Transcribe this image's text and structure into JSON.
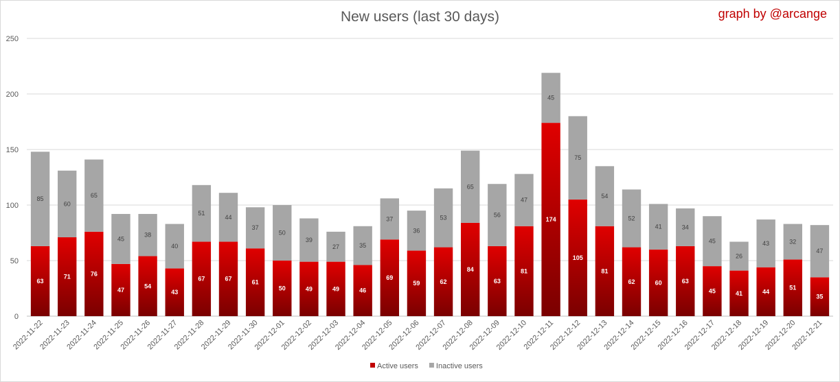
{
  "chart_data": {
    "type": "bar",
    "stacked": true,
    "title": "New users (last 30 days)",
    "credit": "graph by @arcange",
    "categories": [
      "2022-11-22",
      "2022-11-23",
      "2022-11-24",
      "2022-11-25",
      "2022-11-26",
      "2022-11-27",
      "2022-11-28",
      "2022-11-29",
      "2022-11-30",
      "2022-12-01",
      "2022-12-02",
      "2022-12-03",
      "2022-12-04",
      "2022-12-05",
      "2022-12-06",
      "2022-12-07",
      "2022-12-08",
      "2022-12-09",
      "2022-12-10",
      "2022-12-11",
      "2022-12-12",
      "2022-12-13",
      "2022-12-14",
      "2022-12-15",
      "2022-12-16",
      "2022-12-17",
      "2022-12-18",
      "2022-12-19",
      "2022-12-20",
      "2022-12-21"
    ],
    "series": [
      {
        "name": "Active users",
        "color": "#c00000",
        "values": [
          63,
          71,
          76,
          47,
          54,
          43,
          67,
          67,
          61,
          50,
          49,
          49,
          46,
          69,
          59,
          62,
          84,
          63,
          81,
          174,
          105,
          81,
          62,
          60,
          63,
          45,
          41,
          44,
          51,
          35
        ]
      },
      {
        "name": "Inactive users",
        "color": "#a6a6a6",
        "values": [
          85,
          60,
          65,
          45,
          38,
          40,
          51,
          44,
          37,
          50,
          39,
          27,
          35,
          37,
          36,
          53,
          65,
          56,
          47,
          45,
          75,
          54,
          52,
          41,
          34,
          45,
          26,
          43,
          32,
          47
        ]
      }
    ],
    "yticks": [
      "0",
      "50",
      "100",
      "150",
      "200",
      "250"
    ],
    "ylim": [
      0,
      250
    ],
    "grid": true,
    "legend": "bottom-center"
  }
}
